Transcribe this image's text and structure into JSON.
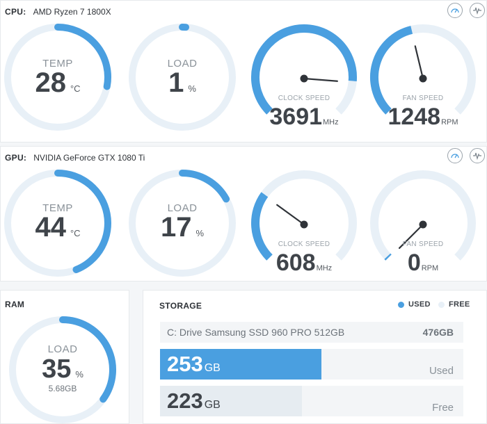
{
  "colors": {
    "accent": "#4a9fe0",
    "track": "#e8f0f7",
    "needle": "#2f3338",
    "text_dark": "#3f444a"
  },
  "cpu": {
    "label": "CPU:",
    "name": "AMD Ryzen 7 1800X",
    "temp": {
      "label": "TEMP",
      "value": "28",
      "unit": "°C",
      "level": 0.28
    },
    "load": {
      "label": "LOAD",
      "value": "1",
      "unit": "%",
      "level": 0.01
    },
    "clock": {
      "label": "CLOCK SPEED",
      "value": "3691",
      "unit": "MHz",
      "level": 0.85
    },
    "fan": {
      "label": "FAN SPEED",
      "value": "1248",
      "unit": "RPM",
      "level": 0.45
    },
    "icons": [
      "gauge-icon",
      "waveform-icon"
    ]
  },
  "gpu": {
    "label": "GPU:",
    "name": "NVIDIA GeForce GTX 1080 Ti",
    "temp": {
      "label": "TEMP",
      "value": "44",
      "unit": "°C",
      "level": 0.44
    },
    "load": {
      "label": "LOAD",
      "value": "17",
      "unit": "%",
      "level": 0.17
    },
    "clock": {
      "label": "CLOCK SPEED",
      "value": "608",
      "unit": "MHz",
      "level": 0.3
    },
    "fan": {
      "label": "FAN SPEED",
      "value": "0",
      "unit": "RPM",
      "level": 0.0
    },
    "icons": [
      "gauge-icon",
      "waveform-icon"
    ]
  },
  "ram": {
    "title": "RAM",
    "load": {
      "label": "LOAD",
      "value": "35",
      "unit": "%",
      "sub": "5.68GB",
      "level": 0.35
    }
  },
  "storage": {
    "title": "STORAGE",
    "legend": {
      "used": "USED",
      "free": "FREE"
    },
    "drive": {
      "name": "C: Drive Samsung SSD 960 PRO 512GB",
      "total": "476GB"
    },
    "used": {
      "value": "253",
      "unit": "GB",
      "tag": "Used",
      "fraction": 0.532
    },
    "free": {
      "value": "223",
      "unit": "GB",
      "tag": "Free",
      "fraction": 0.468
    }
  }
}
